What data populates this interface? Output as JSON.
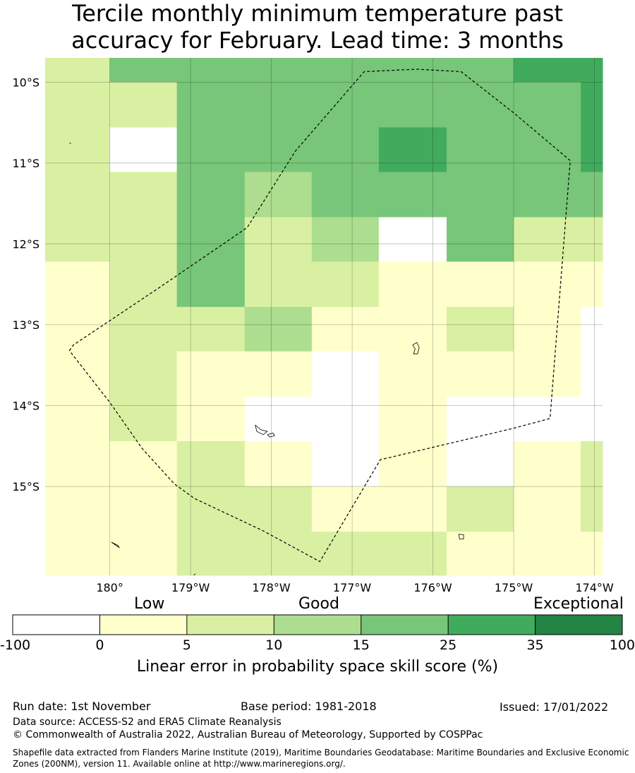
{
  "title": {
    "line1": "Tercile monthly minimum temperature past",
    "line2": "accuracy for February. Lead time: 3 months"
  },
  "map": {
    "lon_range": [
      -180.8,
      -173.9
    ],
    "lat_range": [
      -16.1,
      -9.7
    ],
    "lon_ticks": [
      {
        "value": -180,
        "label": "180°"
      },
      {
        "value": -179,
        "label": "179°W"
      },
      {
        "value": -178,
        "label": "178°W"
      },
      {
        "value": -177,
        "label": "177°W"
      },
      {
        "value": -176,
        "label": "176°W"
      },
      {
        "value": -175,
        "label": "175°W"
      },
      {
        "value": -174,
        "label": "174°W"
      }
    ],
    "lat_ticks": [
      {
        "value": -10,
        "label": "10°S"
      },
      {
        "value": -11,
        "label": "11°S"
      },
      {
        "value": -12,
        "label": "12°S"
      },
      {
        "value": -13,
        "label": "13°S"
      },
      {
        "value": -14,
        "label": "14°S"
      },
      {
        "value": -15,
        "label": "15°S"
      }
    ],
    "grid": true,
    "grid_lon_edges": [
      -180.8,
      -180.0,
      -179.17,
      -178.33,
      -177.5,
      -176.67,
      -175.83,
      -175.0,
      -174.17,
      -173.9
    ],
    "grid_lat_edges": [
      -9.7,
      -10.0,
      -10.56,
      -11.11,
      -11.67,
      -12.22,
      -12.78,
      -13.33,
      -13.89,
      -14.44,
      -15.0,
      -15.56,
      -16.1
    ],
    "cell_classes": [
      [
        2,
        4,
        4,
        4,
        4,
        4,
        4,
        5,
        5
      ],
      [
        2,
        2,
        4,
        4,
        4,
        4,
        4,
        4,
        5
      ],
      [
        2,
        0,
        4,
        4,
        4,
        5,
        4,
        4,
        5
      ],
      [
        2,
        2,
        4,
        3,
        4,
        4,
        4,
        4,
        4
      ],
      [
        2,
        2,
        4,
        2,
        3,
        0,
        4,
        2,
        2
      ],
      [
        1,
        2,
        4,
        2,
        2,
        1,
        1,
        1,
        1
      ],
      [
        1,
        2,
        2,
        3,
        1,
        1,
        2,
        1,
        0
      ],
      [
        1,
        2,
        1,
        1,
        0,
        1,
        1,
        1,
        0
      ],
      [
        1,
        2,
        1,
        0,
        0,
        1,
        0,
        0,
        0
      ],
      [
        1,
        1,
        2,
        1,
        0,
        1,
        0,
        1,
        2
      ],
      [
        1,
        1,
        2,
        2,
        1,
        1,
        2,
        1,
        2
      ],
      [
        1,
        1,
        2,
        2,
        2,
        2,
        1,
        1,
        1
      ]
    ],
    "boundary": [
      [
        -180.5,
        -13.32
      ],
      [
        -180.45,
        -13.25
      ],
      [
        -179.4,
        -12.55
      ],
      [
        -178.3,
        -11.8
      ],
      [
        -177.7,
        -10.85
      ],
      [
        -176.85,
        -9.87
      ],
      [
        -176.2,
        -9.84
      ],
      [
        -175.65,
        -9.87
      ],
      [
        -175.0,
        -10.38
      ],
      [
        -174.3,
        -10.97
      ],
      [
        -174.55,
        -14.16
      ],
      [
        -175.0,
        -14.28
      ],
      [
        -176.65,
        -14.67
      ],
      [
        -177.4,
        -15.93
      ],
      [
        -178.1,
        -15.55
      ],
      [
        -178.95,
        -15.15
      ],
      [
        -179.2,
        -14.97
      ],
      [
        -179.6,
        -14.53
      ],
      [
        -180.0,
        -13.96
      ],
      [
        -180.5,
        -13.32
      ]
    ],
    "islands": [
      [
        [
          -176.25,
          -13.25
        ],
        [
          -176.2,
          -13.22
        ],
        [
          -176.17,
          -13.28
        ],
        [
          -176.19,
          -13.36
        ],
        [
          -176.24,
          -13.36
        ],
        [
          -176.22,
          -13.3
        ],
        [
          -176.25,
          -13.25
        ]
      ],
      [
        [
          -178.2,
          -14.24
        ],
        [
          -178.13,
          -14.3
        ],
        [
          -178.05,
          -14.32
        ],
        [
          -178.1,
          -14.36
        ],
        [
          -178.18,
          -14.32
        ],
        [
          -178.2,
          -14.24
        ]
      ],
      [
        [
          -178.05,
          -14.36
        ],
        [
          -177.98,
          -14.34
        ],
        [
          -177.96,
          -14.37
        ],
        [
          -178.02,
          -14.39
        ],
        [
          -178.05,
          -14.36
        ]
      ],
      [
        [
          -175.68,
          -15.59
        ],
        [
          -175.62,
          -15.6
        ],
        [
          -175.62,
          -15.65
        ],
        [
          -175.67,
          -15.65
        ],
        [
          -175.68,
          -15.59
        ]
      ],
      [
        [
          -179.98,
          -15.69
        ],
        [
          -179.88,
          -15.76
        ],
        [
          -179.9,
          -15.73
        ],
        [
          -179.98,
          -15.69
        ]
      ],
      [
        [
          -180.5,
          -10.75
        ],
        [
          -180.48,
          -10.76
        ]
      ],
      [
        [
          -178.96,
          -16.1
        ],
        [
          -178.94,
          -16.08
        ]
      ]
    ]
  },
  "colorbar": {
    "colors": [
      "#ffffff",
      "#ffffcc",
      "#d9f0a3",
      "#addd8e",
      "#78c679",
      "#41ab5d",
      "#238443"
    ],
    "tick_labels": [
      "-100",
      "0",
      "5",
      "10",
      "15",
      "25",
      "35",
      "100"
    ],
    "category_words": {
      "low": "Low",
      "good": "Good",
      "exceptional": "Exceptional"
    },
    "title": "Linear error in probability space skill score (%)"
  },
  "footer": {
    "run_date": "Run date: 1st November",
    "base_period": "Base period: 1981-2018",
    "issued": "Issued: 17/01/2022",
    "data_source": "Data source: ACCESS-S2 and ERA5 Climate Reanalysis",
    "copyright": "© Commonwealth of Australia 2022, Australian Bureau of Meteorology, Supported by COSPPac",
    "shapefile": "Shapefile data extracted from Flanders Marine Institute (2019), Maritime Boundaries Geodatabase: Maritime Boundaries and Exclusive Economic Zones (200NM), version 11. Available online at http://www.marineregions.org/."
  }
}
